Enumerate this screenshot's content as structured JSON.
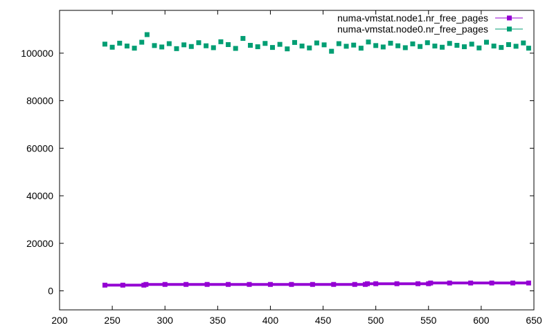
{
  "chart_data": {
    "type": "scatter",
    "title": "",
    "xlabel": "",
    "ylabel": "",
    "xlim": [
      200,
      650
    ],
    "ylim": [
      -8000,
      118000
    ],
    "x_ticks": [
      200,
      250,
      300,
      350,
      400,
      450,
      500,
      550,
      600,
      650
    ],
    "x_tick_labels": [
      "200",
      "250",
      "300",
      "350",
      "400",
      "450",
      "500",
      "550",
      "600",
      "650"
    ],
    "y_ticks": [
      0,
      20000,
      40000,
      60000,
      80000,
      100000
    ],
    "y_tick_labels": [
      "0",
      "20000",
      "40000",
      "60000",
      "80000",
      "100000"
    ],
    "grid": false,
    "legend_position": "top-right",
    "series": [
      {
        "name": "numa-vmstat.node1.nr_free_pages",
        "color": "#9400d3",
        "marker": "square",
        "line": true,
        "x": [
          243,
          260,
          280,
          282,
          300,
          320,
          340,
          360,
          380,
          400,
          420,
          440,
          460,
          480,
          490,
          492,
          500,
          520,
          540,
          550,
          552,
          570,
          590,
          610,
          630,
          645
        ],
        "y": [
          2400,
          2400,
          2400,
          2700,
          2700,
          2700,
          2700,
          2700,
          2700,
          2700,
          2700,
          2700,
          2700,
          2700,
          2700,
          3000,
          3000,
          3000,
          3000,
          3000,
          3300,
          3300,
          3300,
          3300,
          3300,
          3300
        ]
      },
      {
        "name": "numa-vmstat.node0.nr_free_pages",
        "color": "#009e73",
        "marker": "square",
        "line": false,
        "x": [
          243,
          250,
          257,
          264,
          271,
          278,
          283,
          290,
          297,
          304,
          311,
          318,
          325,
          332,
          339,
          346,
          353,
          360,
          367,
          374,
          381,
          388,
          395,
          402,
          409,
          416,
          423,
          430,
          437,
          444,
          451,
          458,
          465,
          472,
          479,
          486,
          493,
          500,
          507,
          514,
          521,
          528,
          535,
          542,
          549,
          556,
          563,
          570,
          577,
          584,
          591,
          598,
          605,
          612,
          619,
          626,
          633,
          640,
          645
        ],
        "y": [
          103800,
          102500,
          104200,
          103000,
          102100,
          104600,
          107800,
          103200,
          102600,
          104000,
          101900,
          103500,
          102800,
          104400,
          103100,
          102300,
          104800,
          103600,
          102000,
          106200,
          103300,
          102700,
          104100,
          102400,
          103700,
          101800,
          104500,
          103000,
          102200,
          104300,
          103500,
          100800,
          104000,
          102900,
          103400,
          102100,
          104700,
          103200,
          102600,
          104200,
          103100,
          102300,
          103900,
          102800,
          104400,
          103000,
          102500,
          104100,
          103300,
          102700,
          103800,
          102200,
          104600,
          103000,
          102400,
          103600,
          102900,
          104300,
          102100
        ]
      }
    ]
  }
}
